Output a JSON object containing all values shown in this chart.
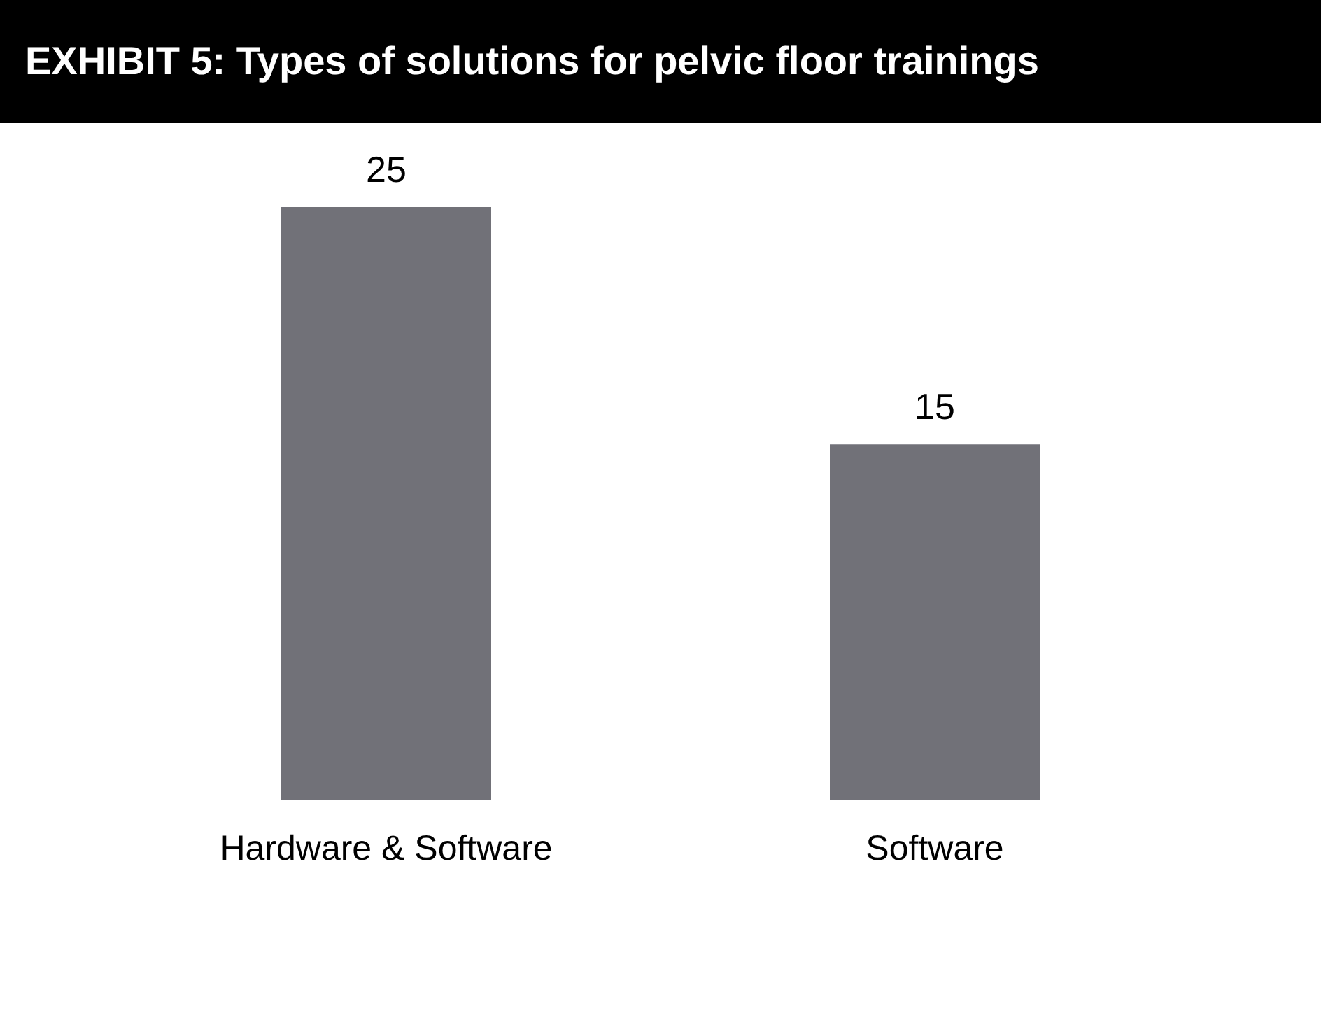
{
  "chart_data": {
    "type": "bar",
    "title": "EXHIBIT 5: Types of solutions for pelvic floor trainings",
    "categories": [
      "Hardware & Software",
      "Software"
    ],
    "values": [
      25,
      15
    ],
    "color": "#717178",
    "data_labels": true,
    "tick_labels": "x",
    "grid": false
  }
}
